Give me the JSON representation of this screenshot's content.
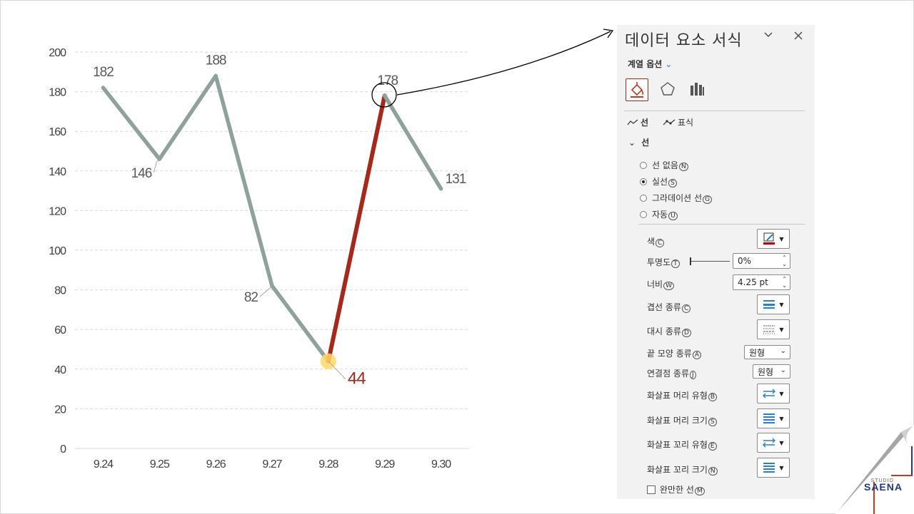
{
  "chart_data": {
    "type": "line",
    "categories": [
      "9.24",
      "9.25",
      "9.26",
      "9.27",
      "9.28",
      "9.29",
      "9.30"
    ],
    "values": [
      182,
      146,
      188,
      82,
      44,
      178,
      131
    ],
    "data_labels": [
      "182",
      "146",
      "188",
      "82",
      "44",
      "178",
      "131"
    ],
    "highlight_segment": [
      4,
      5
    ],
    "highlight_point": 4,
    "y_ticks": [
      "200",
      "180",
      "160",
      "140",
      "120",
      "100",
      "80",
      "60",
      "40",
      "20",
      "0"
    ],
    "ylim": [
      0,
      200
    ],
    "grid": true,
    "title": "",
    "xlabel": "",
    "ylabel": "",
    "colors": {
      "line": "#8fa19d",
      "highlight": "#a5291b",
      "marker": "#ffd966",
      "grid": "#d9d9d9"
    }
  },
  "pane": {
    "title": "데이터 요소 서식",
    "dropdown_icon": "chevron-down-icon",
    "close_icon": "close-icon",
    "series_options": "계열 옵션",
    "tabs": {
      "fill_line": "fill-line-icon",
      "effects": "pentagon-icon",
      "series": "bar-chart-icon"
    },
    "subtabs": {
      "line": "선",
      "marker": "표식"
    },
    "section": "선",
    "radios": [
      {
        "label": "선 없음",
        "key": "N",
        "checked": false
      },
      {
        "label": "실선",
        "key": "S",
        "checked": true
      },
      {
        "label": "그라데이션 선",
        "key": "G",
        "checked": false
      },
      {
        "label": "자동",
        "key": "U",
        "checked": false
      }
    ],
    "props": {
      "color": {
        "label": "색",
        "key": "C",
        "swatch": "#c00000"
      },
      "transparency": {
        "label": "투명도",
        "key": "T",
        "value": "0%"
      },
      "width": {
        "label": "너비",
        "key": "W",
        "value": "4.25 pt"
      },
      "compound": {
        "label": "겹선 종류",
        "key": "C"
      },
      "dash": {
        "label": "대시 종류",
        "key": "D"
      },
      "cap": {
        "label": "끝 모양 종류",
        "key": "A",
        "value": "원형"
      },
      "join": {
        "label": "연결점 종류",
        "key": "J",
        "value": "원형"
      },
      "begin_arrow_type": {
        "label": "화살표 머리 유형",
        "key": "B"
      },
      "begin_arrow_size": {
        "label": "화살표 머리 크기",
        "key": "S"
      },
      "end_arrow_type": {
        "label": "화살표 꼬리 유형",
        "key": "E"
      },
      "end_arrow_size": {
        "label": "화살표 꼬리 크기",
        "key": "N"
      }
    },
    "smooth": {
      "label": "완만한 선",
      "key": "M",
      "checked": false
    }
  },
  "logo": {
    "studio": "STUDIO",
    "name": "SAENA"
  }
}
